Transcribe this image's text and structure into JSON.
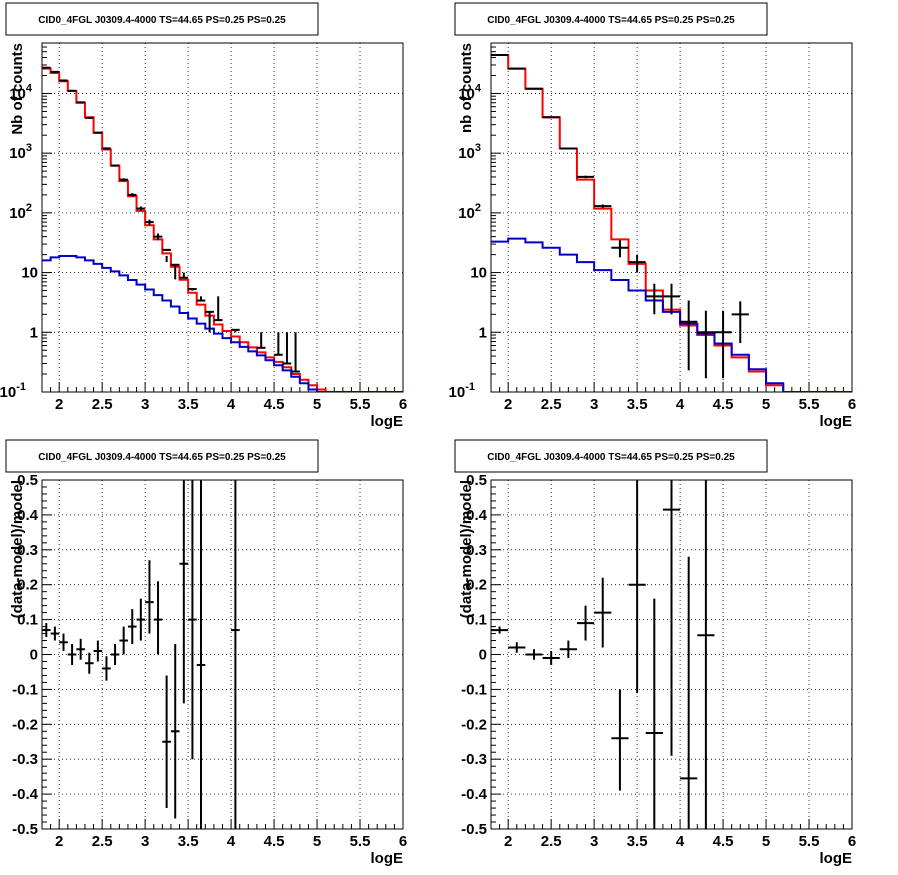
{
  "colors": {
    "data": "#000000",
    "total_model": "#ff0000",
    "background_model": "#0000cc",
    "grid": "#000000"
  },
  "chart_data": [
    {
      "type": "line",
      "title": "CID0_4FGL J0309.4-4000 TS=44.65 PS=0.25 PS=0.25",
      "xlabel": "logE",
      "ylabel": "Nb of counts",
      "xlim": [
        1.8,
        6.0
      ],
      "ylim": [
        0.1,
        70000
      ],
      "yscale": "log",
      "grid": true,
      "x_ticks": [
        "2",
        "2.5",
        "3",
        "3.5",
        "4",
        "4.5",
        "5",
        "5.5",
        "6"
      ],
      "y_ticks": [
        "10^-1",
        "1",
        "10",
        "10^2",
        "10^3",
        "10^4"
      ],
      "series": [
        {
          "name": "",
          "style": "step",
          "color": "#ff0000",
          "x": [
            1.8,
            1.9,
            2.0,
            2.1,
            2.2,
            2.3,
            2.4,
            2.5,
            2.6,
            2.7,
            2.8,
            2.9,
            3.0,
            3.1,
            3.2,
            3.3,
            3.4,
            3.5,
            3.6,
            3.7,
            3.8,
            3.9,
            4.0,
            4.1,
            4.2,
            4.3,
            4.4,
            4.5,
            4.6,
            4.7,
            4.8,
            4.9,
            5.0,
            5.1,
            5.2,
            5.3,
            5.4,
            5.5,
            5.6,
            5.7,
            5.8,
            5.9
          ],
          "values": [
            26000,
            22000,
            16000,
            11000,
            7000,
            4000,
            2200,
            1150,
            620,
            340,
            190,
            108,
            62,
            36,
            21,
            12.5,
            7.6,
            4.6,
            2.9,
            1.9,
            1.35,
            1.05,
            0.85,
            0.68,
            0.56,
            0.46,
            0.38,
            0.32,
            0.26,
            0.2,
            0.16,
            0.13,
            0.11,
            0.1,
            0.1,
            0.1,
            0.1,
            0.1,
            0.1,
            0.1,
            0.1,
            0.1
          ]
        },
        {
          "name": "",
          "style": "step",
          "color": "#0000cc",
          "x": [
            1.8,
            1.9,
            2.0,
            2.1,
            2.2,
            2.3,
            2.4,
            2.5,
            2.6,
            2.7,
            2.8,
            2.9,
            3.0,
            3.1,
            3.2,
            3.3,
            3.4,
            3.5,
            3.6,
            3.7,
            3.8,
            3.9,
            4.0,
            4.1,
            4.2,
            4.3,
            4.4,
            4.5,
            4.6,
            4.7,
            4.8,
            4.9,
            5.0,
            5.1,
            5.2,
            5.3,
            5.4,
            5.5,
            5.6,
            5.7,
            5.8,
            5.9
          ],
          "values": [
            16,
            18,
            19,
            19,
            18,
            16,
            14,
            12,
            10.5,
            9,
            7.5,
            6.3,
            5.2,
            4.2,
            3.4,
            2.7,
            2.1,
            1.7,
            1.4,
            1.15,
            0.95,
            0.8,
            0.68,
            0.57,
            0.48,
            0.41,
            0.34,
            0.28,
            0.23,
            0.18,
            0.14,
            0.11,
            0.1,
            0.1,
            0.1,
            0.1,
            0.1,
            0.1,
            0.1,
            0.1,
            0.1,
            0.1
          ]
        },
        {
          "name": "",
          "style": "errorbar",
          "color": "#000000",
          "x": [
            1.85,
            1.95,
            2.05,
            2.15,
            2.25,
            2.35,
            2.45,
            2.55,
            2.65,
            2.75,
            2.85,
            2.95,
            3.05,
            3.15,
            3.25,
            3.35,
            3.45,
            3.55,
            3.65,
            3.75,
            3.85,
            4.05,
            4.35,
            4.55,
            4.65,
            4.75
          ],
          "xerr": 0.05,
          "values": [
            27000,
            23000,
            16500,
            11100,
            7100,
            3900,
            2200,
            1200,
            620,
            360,
            200,
            118,
            70,
            40,
            24,
            13.5,
            8.2,
            5.3,
            3.4,
            2.2,
            1.6,
            1.1,
            0.55,
            0.42,
            0.3,
            0.22
          ],
          "ylo": [
            26700,
            22700,
            16200,
            10900,
            6900,
            3800,
            2150,
            1150,
            595,
            340,
            186,
            108,
            63,
            35,
            15,
            7.7,
            8.2,
            5.3,
            3.4,
            2.2,
            1.6,
            1.1,
            0.55,
            0.42,
            0.3,
            0.22
          ],
          "yhi": [
            27300,
            23300,
            16800,
            11300,
            7300,
            4000,
            2250,
            1250,
            645,
            380,
            214,
            128,
            77,
            45,
            19,
            13,
            10,
            5,
            4,
            1,
            4,
            1,
            1,
            1,
            1,
            1
          ],
          "comment": ""
        }
      ]
    },
    {
      "type": "line",
      "title": "CID0_4FGL J0309.4-4000 TS=44.65 PS=0.25 PS=0.25",
      "xlabel": "logE",
      "ylabel": "nb of counts",
      "xlim": [
        1.8,
        6.0
      ],
      "ylim": [
        0.1,
        70000
      ],
      "yscale": "log",
      "grid": true,
      "x_ticks": [
        "2",
        "2.5",
        "3",
        "3.5",
        "4",
        "4.5",
        "5",
        "5.5",
        "6"
      ],
      "y_ticks": [
        "10^-1",
        "1",
        "10",
        "10^2",
        "10^3",
        "10^4"
      ],
      "series": [
        {
          "name": "",
          "style": "step",
          "color": "#ff0000",
          "x": [
            1.8,
            2.0,
            2.2,
            2.4,
            2.6,
            2.8,
            3.0,
            3.2,
            3.4,
            3.6,
            3.8,
            4.0,
            4.2,
            4.4,
            4.6,
            4.8,
            5.0,
            5.2,
            5.4,
            5.6,
            5.8
          ],
          "values": [
            44000,
            26000,
            12000,
            4000,
            1200,
            360,
            118,
            36,
            14,
            5,
            2.4,
            1.3,
            0.9,
            0.6,
            0.38,
            0.22,
            0.13,
            0.1,
            0.1,
            0.1,
            0.1
          ]
        },
        {
          "name": "",
          "style": "step",
          "color": "#0000cc",
          "x": [
            1.8,
            2.0,
            2.2,
            2.4,
            2.6,
            2.8,
            3.0,
            3.2,
            3.4,
            3.6,
            3.8,
            4.0,
            4.2,
            4.4,
            4.6,
            4.8,
            5.0,
            5.2,
            5.4,
            5.6,
            5.8
          ],
          "values": [
            33,
            37,
            32,
            26,
            20,
            15,
            11,
            7.5,
            5,
            3.4,
            2.2,
            1.4,
            0.95,
            0.65,
            0.42,
            0.24,
            0.14,
            0.1,
            0.1,
            0.1,
            0.1
          ]
        },
        {
          "name": "",
          "style": "errorbar",
          "color": "#000000",
          "x": [
            1.9,
            2.1,
            2.3,
            2.5,
            2.7,
            2.9,
            3.1,
            3.3,
            3.5,
            3.7,
            3.9,
            4.1,
            4.3,
            4.5,
            4.7
          ],
          "xerr": 0.1,
          "values": [
            44000,
            26000,
            12000,
            4000,
            1200,
            400,
            130,
            26,
            15,
            4,
            4,
            1.5,
            1,
            1,
            2
          ],
          "ylo": [
            43800,
            25800,
            11900,
            3950,
            1180,
            380,
            121,
            18,
            10,
            2,
            2,
            0.23,
            0.17,
            0.17,
            0.66
          ],
          "yhi": [
            44200,
            26200,
            12100,
            4050,
            1220,
            420,
            139,
            35,
            20,
            6.5,
            6.5,
            3.4,
            2.3,
            2.3,
            3.3
          ]
        }
      ]
    },
    {
      "type": "scatter",
      "title": "CID0_4FGL J0309.4-4000 TS=44.65 PS=0.25 PS=0.25",
      "xlabel": "logE",
      "ylabel": "(data-model)/model",
      "xlim": [
        1.8,
        6.0
      ],
      "ylim": [
        -0.5,
        0.5
      ],
      "grid": true,
      "x_ticks": [
        "2",
        "2.5",
        "3",
        "3.5",
        "4",
        "4.5",
        "5",
        "5.5",
        "6"
      ],
      "y_ticks": [
        "-0.5",
        "-0.4",
        "-0.3",
        "-0.2",
        "-0.1",
        "0",
        "0.1",
        "0.2",
        "0.3",
        "0.4",
        "0.5"
      ],
      "series": [
        {
          "name": "",
          "style": "errorbar",
          "color": "#000000",
          "x": [
            1.85,
            1.95,
            2.05,
            2.15,
            2.25,
            2.35,
            2.45,
            2.55,
            2.65,
            2.75,
            2.85,
            2.95,
            3.05,
            3.15,
            3.25,
            3.35,
            3.45,
            3.55,
            3.65,
            4.05
          ],
          "xerr": 0.05,
          "values": [
            0.07,
            0.06,
            0.035,
            0,
            0.015,
            -0.025,
            0.01,
            -0.04,
            0,
            0.04,
            0.08,
            0.1,
            0.15,
            0.1,
            -0.25,
            -0.22,
            0.26,
            0.1,
            -0.03,
            0.07
          ],
          "ylo": [
            0.05,
            0.04,
            0.01,
            -0.03,
            -0.015,
            -0.055,
            -0.02,
            -0.075,
            -0.03,
            0,
            0.03,
            0.04,
            0.06,
            0.0,
            -0.44,
            -0.47,
            -0.14,
            -0.3,
            -0.5,
            -0.5
          ],
          "yhi": [
            0.09,
            0.08,
            0.06,
            0.03,
            0.045,
            0.005,
            0.04,
            -0.005,
            0.03,
            0.08,
            0.13,
            0.16,
            0.27,
            0.21,
            -0.06,
            0.03,
            0.5,
            0.5,
            0.5,
            0.5
          ]
        }
      ]
    },
    {
      "type": "scatter",
      "title": "CID0_4FGL J0309.4-4000 TS=44.65 PS=0.25 PS=0.25",
      "xlabel": "logE",
      "ylabel": "(data-model)/model",
      "xlim": [
        1.8,
        6.0
      ],
      "ylim": [
        -0.5,
        0.5
      ],
      "grid": true,
      "x_ticks": [
        "2",
        "2.5",
        "3",
        "3.5",
        "4",
        "4.5",
        "5",
        "5.5",
        "6"
      ],
      "y_ticks": [
        "-0.5",
        "-0.4",
        "-0.3",
        "-0.2",
        "-0.1",
        "0",
        "0.1",
        "0.2",
        "0.3",
        "0.4",
        "0.5"
      ],
      "series": [
        {
          "name": "",
          "style": "errorbar",
          "color": "#000000",
          "x": [
            1.9,
            2.1,
            2.3,
            2.5,
            2.7,
            2.9,
            3.1,
            3.3,
            3.5,
            3.7,
            3.9,
            4.1,
            4.3
          ],
          "xerr": 0.1,
          "values": [
            0.07,
            0.02,
            0,
            -0.01,
            0.015,
            0.09,
            0.12,
            -0.24,
            0.2,
            -0.225,
            0.415,
            -0.355,
            0.055
          ],
          "ylo": [
            0.06,
            0.005,
            -0.015,
            -0.03,
            -0.01,
            0.04,
            0.02,
            -0.39,
            -0.11,
            -0.5,
            -0.29,
            -0.5,
            -0.5
          ],
          "yhi": [
            0.08,
            0.035,
            0.015,
            0.01,
            0.04,
            0.14,
            0.22,
            -0.1,
            0.5,
            0.16,
            0.5,
            0.28,
            0.5
          ]
        }
      ]
    }
  ]
}
